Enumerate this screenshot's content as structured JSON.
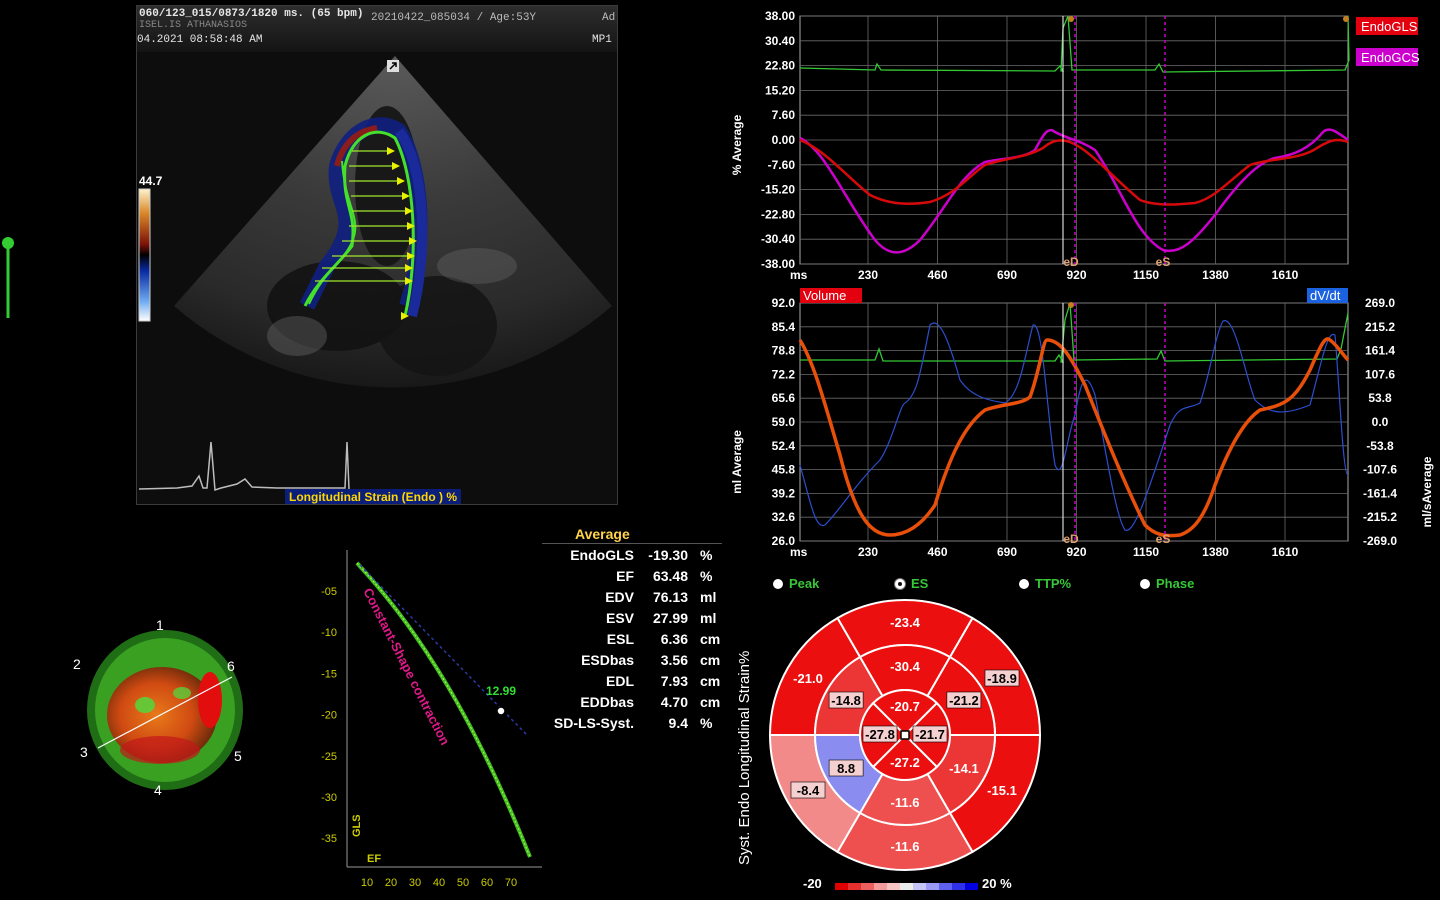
{
  "echo": {
    "header_line1": "060/123_015/0873/1820 ms.  (65 bpm)",
    "header_line1b": "20210422_085034 / Age:53Y",
    "header_line1c": "Ad",
    "header_line0": "ISEL.IS ATHANASIOS",
    "header_line2a": "04.2021    08:58:48  AM",
    "header_line2b": "MP1",
    "colorbar_max": "44.7",
    "strain_label": "Longitudinal Strain (Endo ) %"
  },
  "chart_top": {
    "ylabel": "% Average",
    "xunit": "ms",
    "yticks": [
      "38.00",
      "30.40",
      "22.80",
      "15.20",
      "7.60",
      "0.00",
      "-7.60",
      "-15.20",
      "-22.80",
      "-30.40",
      "-38.00"
    ],
    "xticks": [
      "230",
      "460",
      "690",
      "920",
      "1150",
      "1380",
      "1610"
    ],
    "legend": [
      "EndoGLS",
      "EndoGCS"
    ],
    "legend_colors": [
      "#e3000f",
      "#cc00cc"
    ],
    "markers": [
      "eD",
      "eS"
    ]
  },
  "chart_bottom": {
    "ylabel": "ml Average",
    "ylabel_right": "ml/sAverage",
    "xunit": "ms",
    "yticks": [
      "92.0",
      "85.4",
      "78.8",
      "72.2",
      "65.6",
      "59.0",
      "52.4",
      "45.8",
      "39.2",
      "32.6",
      "26.0"
    ],
    "yticks_right": [
      "269.0",
      "215.2",
      "161.4",
      "107.6",
      "53.8",
      "0.0",
      "-53.8",
      "-107.6",
      "-161.4",
      "-215.2",
      "-269.0"
    ],
    "xticks": [
      "230",
      "460",
      "690",
      "920",
      "1150",
      "1380",
      "1610"
    ],
    "legend_left": "Volume",
    "legend_right": "dV/dt",
    "markers": [
      "eD",
      "eS"
    ]
  },
  "stats": {
    "title": "Average",
    "rows": [
      {
        "name": "EndoGLS",
        "value": "-19.30",
        "unit": "%"
      },
      {
        "name": "EF",
        "value": "63.48",
        "unit": "%"
      },
      {
        "name": "EDV",
        "value": "76.13",
        "unit": "ml"
      },
      {
        "name": "ESV",
        "value": "27.99",
        "unit": "ml"
      },
      {
        "name": "ESL",
        "value": "6.36",
        "unit": "cm"
      },
      {
        "name": "ESDbas",
        "value": "3.56",
        "unit": "cm"
      },
      {
        "name": "EDL",
        "value": "7.93",
        "unit": "cm"
      },
      {
        "name": "EDDbas",
        "value": "4.70",
        "unit": "cm"
      },
      {
        "name": "SD-LS-Syst.",
        "value": "9.4",
        "unit": "%"
      }
    ]
  },
  "radios": [
    {
      "label": "Peak",
      "selected": false
    },
    {
      "label": "ES",
      "selected": true
    },
    {
      "label": "TTP%",
      "selected": false
    },
    {
      "label": "Phase",
      "selected": false
    }
  ],
  "bullseye": {
    "title": "Syst. Endo Longitudinal Strain%",
    "outer": [
      "-23.4",
      "-18.9",
      "-15.1",
      "-11.6",
      "-8.4",
      "-21.0"
    ],
    "mid": [
      "-30.4",
      "-21.2",
      "-14.1",
      "-11.6",
      "8.8",
      "-14.8"
    ],
    "apical": [
      "-20.7",
      "-21.7",
      "-27.2",
      "-27.8"
    ],
    "scale_min": "-20",
    "scale_max": "20 %"
  },
  "ef_gls": {
    "yticks": [
      "-05",
      "-10",
      "-15",
      "-20",
      "-25",
      "-30",
      "-35"
    ],
    "xticks": [
      "10",
      "20",
      "30",
      "40",
      "50",
      "60",
      "70"
    ],
    "ylabel": "GLS",
    "xlabel": "EF",
    "curve_label": "Constant-Shape contraction",
    "point_label": "12.99"
  },
  "model3d": {
    "labels": [
      "1",
      "2",
      "3",
      "4",
      "5",
      "6"
    ]
  }
}
